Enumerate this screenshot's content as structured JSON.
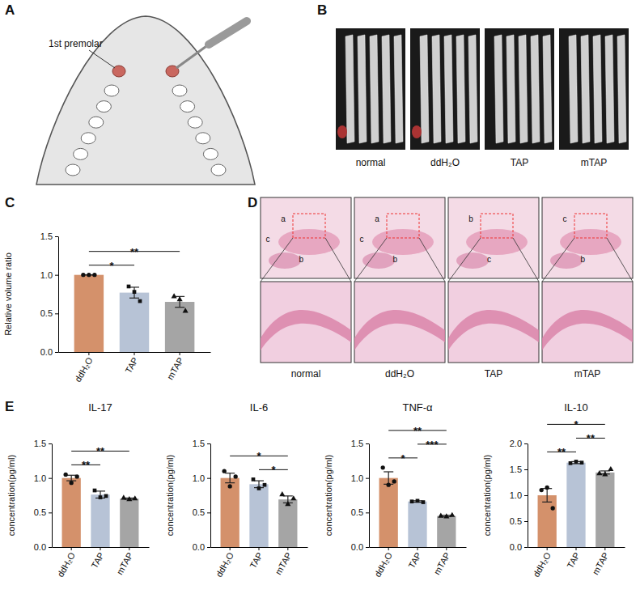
{
  "panel_labels": [
    "A",
    "B",
    "C",
    "D",
    "E"
  ],
  "panel_a": {
    "label": "1st premolar"
  },
  "panel_b": {
    "labels": [
      "normal",
      "ddH₂O",
      "TAP",
      "mTAP"
    ]
  },
  "panel_d": {
    "labels": [
      "normal",
      "ddH₂O",
      "TAP",
      "mTAP"
    ],
    "letters": [
      [
        "a",
        "b",
        "c"
      ],
      [
        "a",
        "b",
        "c"
      ],
      [
        "b",
        "c"
      ],
      [
        "c",
        "b"
      ]
    ]
  },
  "chart_data": [
    {
      "type": "bar",
      "y_label": "Relative volume ratio",
      "categories": [
        "ddH₂O",
        "TAP",
        "mTAP"
      ],
      "values": [
        1.0,
        0.77,
        0.65
      ],
      "errors": [
        0,
        0.07,
        0.07
      ],
      "points": [
        [
          1.0,
          1.0,
          1.0
        ],
        [
          0.85,
          0.78,
          0.66
        ],
        [
          0.72,
          0.68,
          0.53
        ]
      ],
      "colors": [
        "#d4916b",
        "#b7c3d6",
        "#a5a5a5"
      ],
      "ylim": [
        0,
        1.5
      ],
      "yticks": [
        {
          "value": 0,
          "label": "0.0"
        },
        0.5,
        {
          "value": 1,
          "label": "1.0"
        },
        1.5
      ],
      "annotations": [
        {
          "from": "ddH₂O",
          "to": "TAP",
          "label": "*"
        },
        {
          "from": "ddH₂O",
          "to": "mTAP",
          "label": "**"
        }
      ]
    },
    {
      "type": "bar",
      "title": "IL-17",
      "y_label": "concentration(pg/ml)",
      "categories": [
        "ddH₂O",
        "TAP",
        "mTAP"
      ],
      "values": [
        1.0,
        0.76,
        0.7
      ],
      "errors": [
        0.04,
        0.05,
        0.01
      ],
      "points": [
        [
          1.05,
          0.93,
          1.02
        ],
        [
          0.82,
          0.72,
          0.74
        ],
        [
          0.71,
          0.69,
          0.7
        ]
      ],
      "colors": [
        "#d4916b",
        "#b7c3d6",
        "#a5a5a5"
      ],
      "ylim": [
        0,
        1.5
      ],
      "yticks": [
        {
          "value": 0,
          "label": "0.0"
        },
        0.5,
        {
          "value": 1,
          "label": "1.0"
        },
        1.5
      ],
      "annotations": [
        {
          "from": "ddH₂O",
          "to": "TAP",
          "label": "**"
        },
        {
          "from": "ddH₂O",
          "to": "mTAP",
          "label": "**"
        }
      ]
    },
    {
      "type": "bar",
      "title": "IL-6",
      "y_label": "concentration(pg/ml)",
      "categories": [
        "ddH₂O",
        "TAP",
        "mTAP"
      ],
      "values": [
        1.0,
        0.91,
        0.69
      ],
      "errors": [
        0.07,
        0.05,
        0.05
      ],
      "points": [
        [
          1.1,
          0.88,
          1.02
        ],
        [
          0.98,
          0.85,
          0.9
        ],
        [
          0.76,
          0.62,
          0.7
        ]
      ],
      "colors": [
        "#d4916b",
        "#b7c3d6",
        "#a5a5a5"
      ],
      "ylim": [
        0,
        1.5
      ],
      "yticks": [
        {
          "value": 0,
          "label": "0.0"
        },
        0.5,
        {
          "value": 1,
          "label": "1.0"
        },
        1.5
      ],
      "annotations": [
        {
          "from": "ddH₂O",
          "to": "mTAP",
          "label": "*"
        },
        {
          "from": "TAP",
          "to": "mTAP",
          "label": "*"
        }
      ]
    },
    {
      "type": "bar",
      "title": "TNF-α",
      "y_label": "concentration(pg/ml)",
      "categories": [
        "ddH₂O",
        "TAP",
        "mTAP"
      ],
      "values": [
        1.0,
        0.66,
        0.45
      ],
      "errors": [
        0.09,
        0.01,
        0.01
      ],
      "points": [
        [
          1.15,
          0.9,
          0.95
        ],
        [
          0.66,
          0.67,
          0.65
        ],
        [
          0.45,
          0.44,
          0.46
        ]
      ],
      "colors": [
        "#d4916b",
        "#b7c3d6",
        "#a5a5a5"
      ],
      "ylim": [
        0,
        1.5
      ],
      "yticks": [
        {
          "value": 0,
          "label": "0.0"
        },
        0.5,
        {
          "value": 1,
          "label": "1.0"
        },
        1.5
      ],
      "annotations": [
        {
          "from": "ddH₂O",
          "to": "TAP",
          "label": "*"
        },
        {
          "from": "ddH₂O",
          "to": "mTAP",
          "label": "**"
        },
        {
          "from": "TAP",
          "to": "mTAP",
          "label": "***"
        }
      ]
    },
    {
      "type": "bar",
      "title": "IL-10",
      "y_label": "concentration(pg/ml)",
      "categories": [
        "ddH₂O",
        "TAP",
        "mTAP"
      ],
      "values": [
        1.0,
        1.63,
        1.44
      ],
      "errors": [
        0.13,
        0.02,
        0.03
      ],
      "points": [
        [
          1.1,
          1.15,
          0.75
        ],
        [
          1.62,
          1.65,
          1.63
        ],
        [
          1.42,
          1.4,
          1.5
        ]
      ],
      "colors": [
        "#d4916b",
        "#b7c3d6",
        "#a5a5a5"
      ],
      "ylim": [
        0,
        2
      ],
      "yticks": [
        {
          "value": 0,
          "label": "0.0"
        },
        0.5,
        {
          "value": 1,
          "label": "1.0"
        },
        1.5,
        {
          "value": 2,
          "label": "2.0"
        }
      ],
      "annotations": [
        {
          "from": "ddH₂O",
          "to": "TAP",
          "label": "**"
        },
        {
          "from": "ddH₂O",
          "to": "mTAP",
          "label": "*"
        },
        {
          "from": "TAP",
          "to": "mTAP",
          "label": "**"
        }
      ]
    }
  ]
}
